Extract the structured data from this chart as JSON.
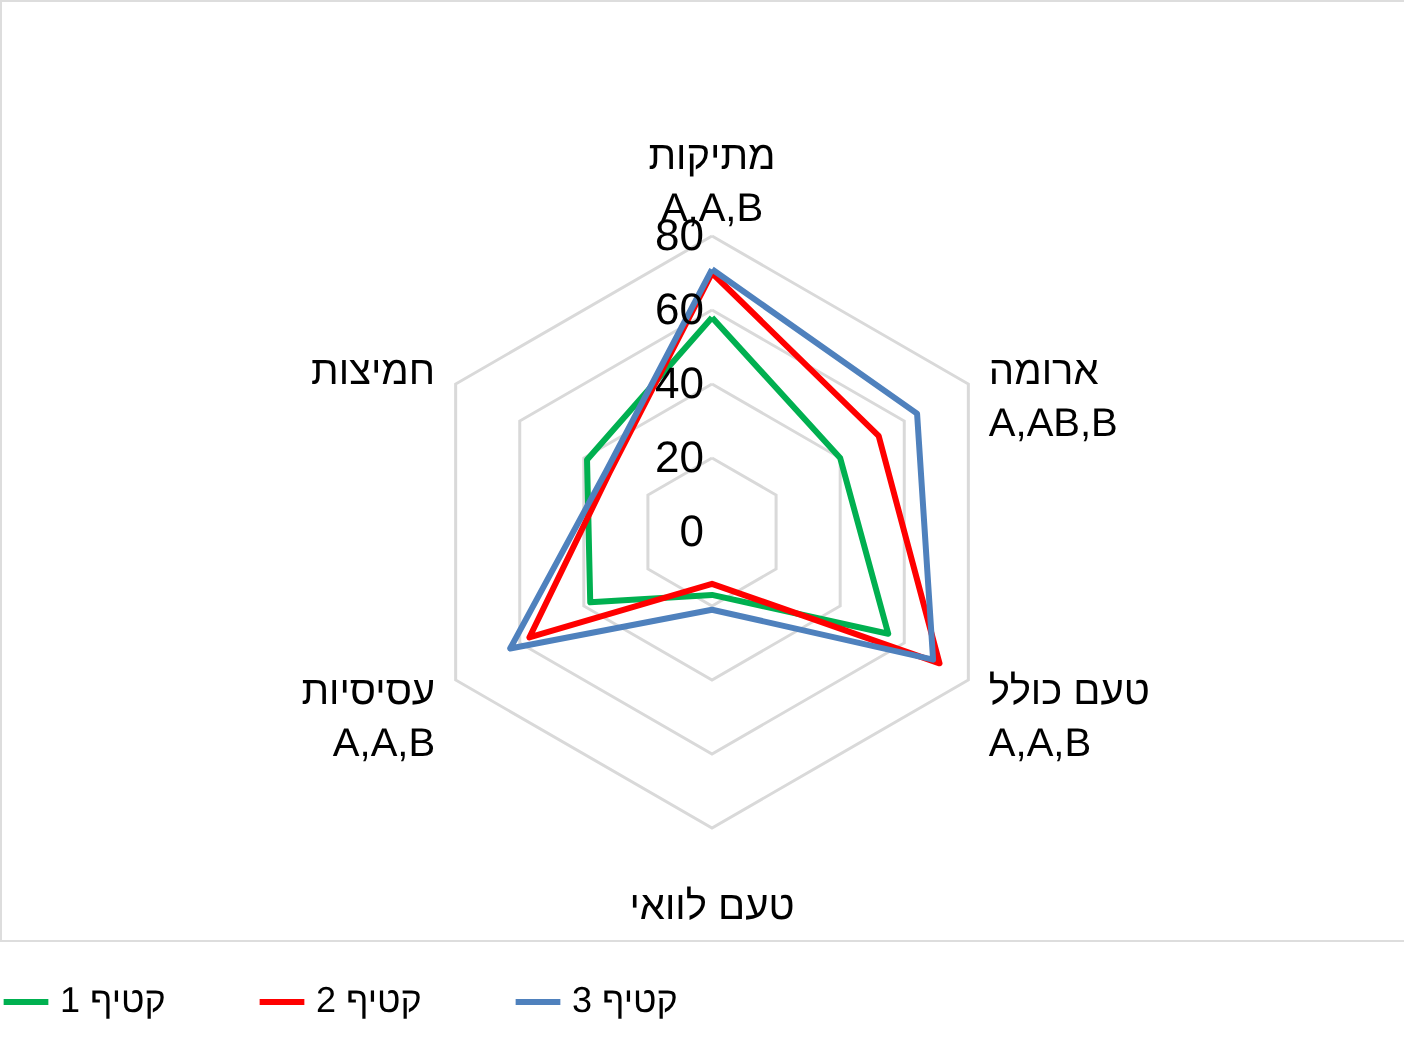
{
  "chart_data": {
    "type": "radar",
    "categories": [
      "מתיקות\nA,A,B",
      "ארומה\nA,AB,B",
      "טעם כולל\nA,A,B",
      "טעם לוואי",
      "עסיסיות\nA,A,B",
      "חמיצות"
    ],
    "series": [
      {
        "name": "קטיף 1",
        "color": "#00b050",
        "values": [
          58,
          40,
          55,
          17,
          38,
          39
        ]
      },
      {
        "name": "קטיף 2",
        "color": "#ff0000",
        "values": [
          70,
          52,
          71,
          14,
          57,
          32
        ]
      },
      {
        "name": "קטיף 3",
        "color": "#4f81bd",
        "values": [
          71,
          64,
          69,
          21,
          63,
          33
        ]
      }
    ],
    "ylim": [
      0,
      80
    ],
    "yticks": [
      0,
      20,
      40,
      60,
      80
    ],
    "grid": true,
    "legend": "bottom"
  }
}
